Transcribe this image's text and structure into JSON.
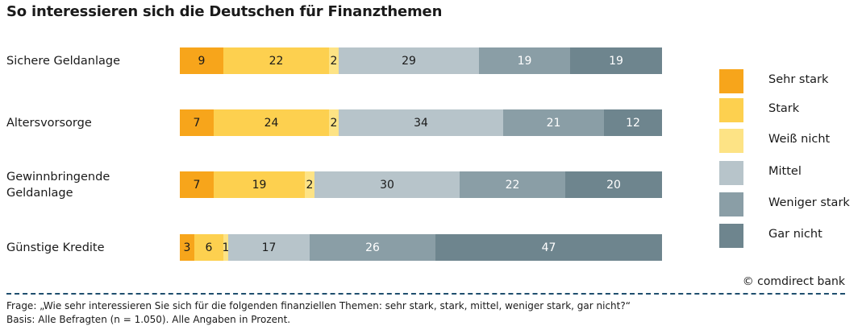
{
  "title": "So interessieren sich die Deutschen für Finanzthemen",
  "chart_data": {
    "type": "bar",
    "orientation": "horizontal",
    "stacked": true,
    "categories": [
      "Sichere Geldanlage",
      "Altersvorsorge",
      "Gewinnbringende Geldanlage",
      "Günstige Kredite"
    ],
    "category_display": [
      "Sichere Geldanlage",
      "Altersvorsorge",
      "Gewinnbringende\nGeldanlage",
      "Günstige Kredite"
    ],
    "series": [
      {
        "name": "Sehr stark",
        "color": "#f7a51b",
        "text_color": "#1a1a1a",
        "values": [
          9,
          7,
          7,
          3
        ]
      },
      {
        "name": "Stark",
        "color": "#fdd04f",
        "text_color": "#1a1a1a",
        "values": [
          22,
          24,
          19,
          6
        ]
      },
      {
        "name": "Weiß nicht",
        "color": "#fde385",
        "text_color": "#1a1a1a",
        "values": [
          2,
          2,
          2,
          1
        ]
      },
      {
        "name": "Mittel",
        "color": "#b7c4ca",
        "text_color": "#1a1a1a",
        "values": [
          29,
          34,
          30,
          17
        ]
      },
      {
        "name": "Weniger stark",
        "color": "#8a9ea6",
        "text_color": "#ffffff",
        "values": [
          19,
          21,
          22,
          26
        ]
      },
      {
        "name": "Gar nicht",
        "color": "#6e858e",
        "text_color": "#ffffff",
        "values": [
          19,
          12,
          20,
          47
        ]
      }
    ],
    "legend_position": "right",
    "grid": false
  },
  "copyright": "© comdirect bank",
  "footnotes": [
    "Frage: „Wie sehr interessieren Sie sich für die folgenden finanziellen Themen: sehr stark, stark, mittel, weniger stark, gar nicht?“",
    "Basis: Alle Befragten (n = 1.050). Alle Angaben in Prozent."
  ]
}
